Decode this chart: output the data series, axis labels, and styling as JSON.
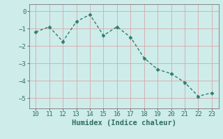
{
  "x": [
    10,
    11,
    12,
    13,
    14,
    15,
    16,
    17,
    18,
    19,
    20,
    21,
    22,
    23
  ],
  "y": [
    -1.2,
    -0.9,
    -1.75,
    -0.6,
    -0.2,
    -1.4,
    -0.9,
    -1.5,
    -2.7,
    -3.35,
    -3.6,
    -4.1,
    -4.9,
    -4.7
  ],
  "line_color": "#2e7d6e",
  "marker_color": "#2e7d6e",
  "bg_color": "#ceecea",
  "grid_color": "#d4aaaa",
  "xlabel": "Humidex (Indice chaleur)",
  "xlim": [
    9.5,
    23.5
  ],
  "ylim": [
    -5.6,
    0.4
  ],
  "yticks": [
    0,
    -1,
    -2,
    -3,
    -4,
    -5
  ],
  "xticks": [
    10,
    11,
    12,
    13,
    14,
    15,
    16,
    17,
    18,
    19,
    20,
    21,
    22,
    23
  ],
  "xlabel_fontsize": 7.5,
  "tick_fontsize": 6.5,
  "line_width": 1.0,
  "marker_size": 2.5
}
